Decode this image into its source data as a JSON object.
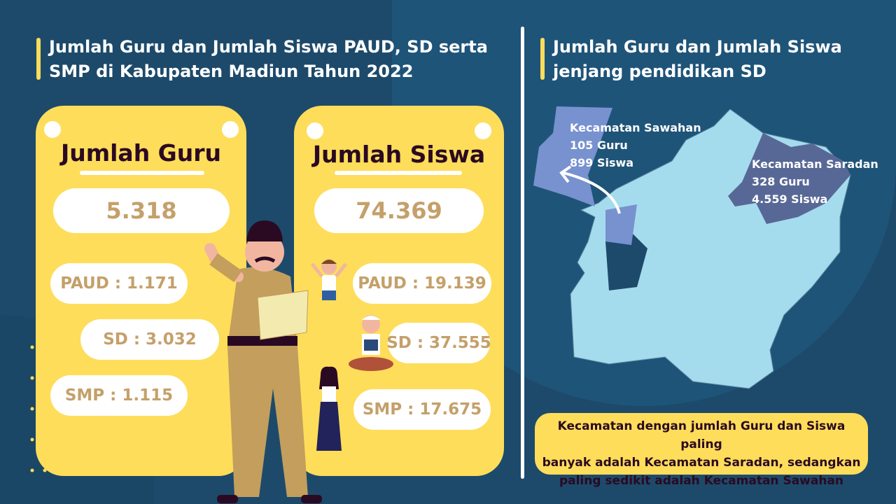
{
  "colors": {
    "background": "#1d4a6b",
    "card": "#fedd5a",
    "accent_number": "#c4a06a",
    "map_base": "#a5dced",
    "sawahan": "#7891cf",
    "saradan": "#586896"
  },
  "left": {
    "title_line1": "Jumlah Guru dan Jumlah Siswa PAUD, SD serta",
    "title_line2": "SMP di Kabupaten Madiun Tahun 2022"
  },
  "guru": {
    "heading": "Jumlah Guru",
    "total": "5.318",
    "paud": "PAUD : 1.171",
    "sd": "SD : 3.032",
    "smp": "SMP : 1.115"
  },
  "siswa": {
    "heading": "Jumlah Siswa",
    "total": "74.369",
    "paud": "PAUD : 19.139",
    "sd": "SD : 37.555",
    "smp": "SMP : 17.675"
  },
  "right": {
    "title_line1": "Jumlah Guru dan Jumlah Siswa",
    "title_line2": "jenjang pendidikan SD"
  },
  "map": {
    "sawahan": {
      "name": "Kecamatan Sawahan",
      "guru": "105 Guru",
      "siswa": "899 Siswa"
    },
    "saradan": {
      "name": "Kecamatan Saradan",
      "guru": "328 Guru",
      "siswa": "4.559 Siswa"
    }
  },
  "note": {
    "line1": "Kecamatan dengan jumlah Guru dan Siswa paling",
    "line2": "banyak adalah Kecamatan Saradan, sedangkan",
    "line3": "paling sedikit adalah Kecamatan Sawahan"
  }
}
